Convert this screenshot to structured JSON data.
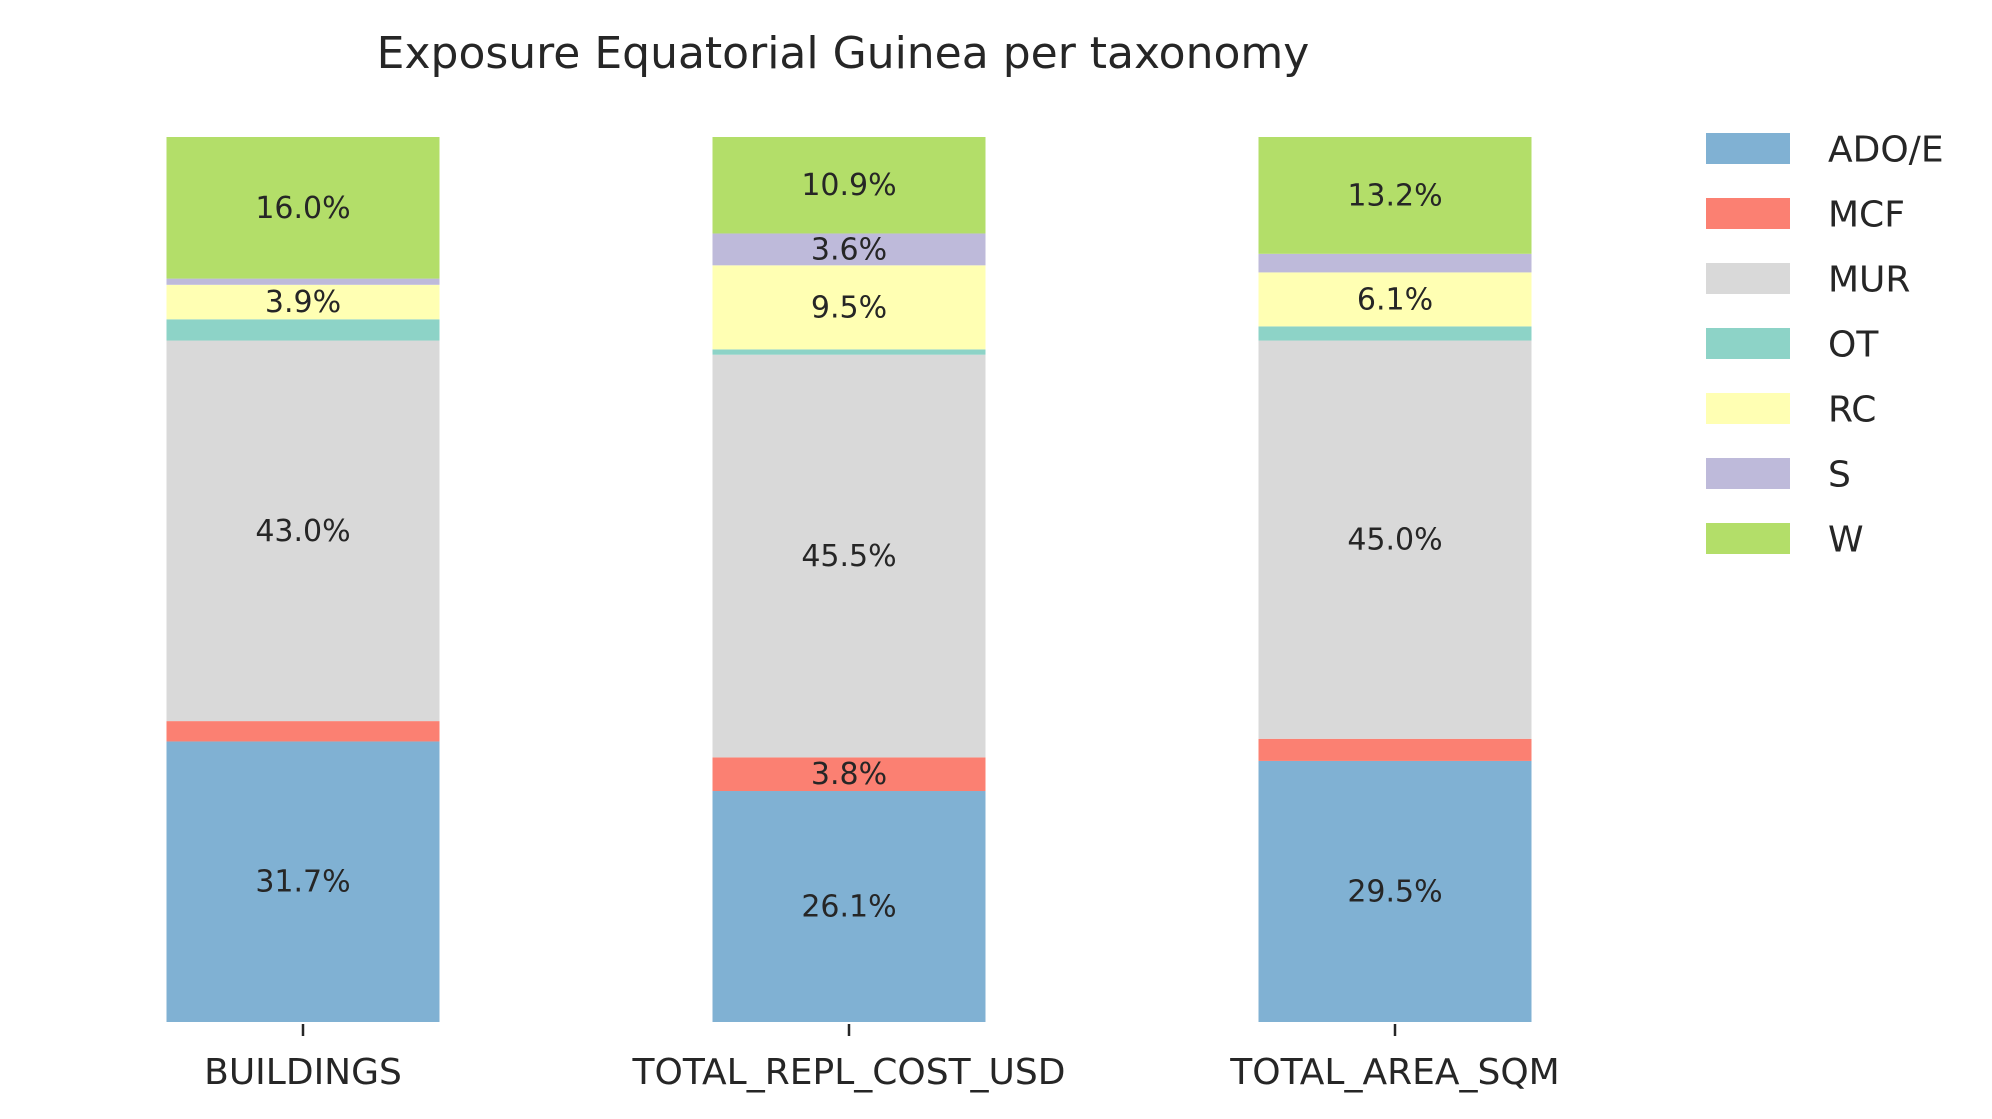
{
  "chart_data": {
    "type": "bar",
    "stacked": true,
    "normalized": true,
    "title": "Exposure Equatorial Guinea per taxonomy",
    "xlabel": "",
    "ylabel": "",
    "ylim": [
      0,
      100
    ],
    "grid": false,
    "legend_position": "right",
    "categories": [
      "BUILDINGS",
      "TOTAL_REPL_COST_USD",
      "TOTAL_AREA_SQM"
    ],
    "series": [
      {
        "name": "ADO/E",
        "color": "#80b1d3",
        "values": [
          31.7,
          26.1,
          29.5
        ],
        "labels": [
          "31.7%",
          "26.1%",
          "29.5%"
        ]
      },
      {
        "name": "MCF",
        "color": "#fb8072",
        "values": [
          2.3,
          3.8,
          2.5
        ],
        "labels": [
          "",
          "3.8%",
          ""
        ]
      },
      {
        "name": "MUR",
        "color": "#d9d9d9",
        "values": [
          43.0,
          45.5,
          45.0
        ],
        "labels": [
          "43.0%",
          "45.5%",
          "45.0%"
        ]
      },
      {
        "name": "OT",
        "color": "#8dd3c7",
        "values": [
          2.4,
          0.6,
          1.6
        ],
        "labels": [
          "",
          "",
          ""
        ]
      },
      {
        "name": "RC",
        "color": "#ffffb3",
        "values": [
          3.9,
          9.5,
          6.1
        ],
        "labels": [
          "3.9%",
          "9.5%",
          "6.1%"
        ]
      },
      {
        "name": "S",
        "color": "#bebada",
        "values": [
          0.7,
          3.6,
          2.1
        ],
        "labels": [
          "",
          "3.6%",
          ""
        ]
      },
      {
        "name": "W",
        "color": "#b3de69",
        "values": [
          16.0,
          10.9,
          13.2
        ],
        "labels": [
          "16.0%",
          "10.9%",
          "13.2%"
        ]
      }
    ]
  }
}
